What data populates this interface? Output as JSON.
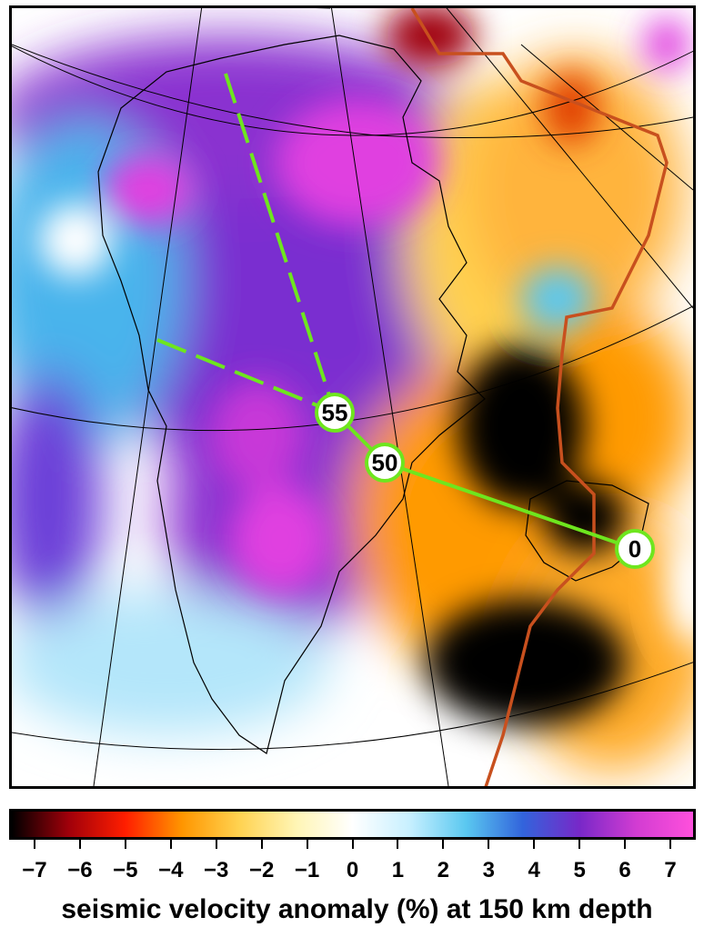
{
  "map": {
    "colors": {
      "profile_line": "#6ee61e",
      "plate_boundary": "#c8501e",
      "coastline": "#000000"
    },
    "markers": [
      {
        "label": "55"
      },
      {
        "label": "50"
      },
      {
        "label": "0"
      }
    ]
  },
  "colorbar": {
    "ticks": [
      "−7",
      "−6",
      "−5",
      "−4",
      "−3",
      "−2",
      "−1",
      "0",
      "1",
      "2",
      "3",
      "4",
      "5",
      "6",
      "7"
    ],
    "range": [
      -7.5,
      7.5
    ],
    "stops": [
      "#000000",
      "#a0000a",
      "#ff1e00",
      "#ff9600",
      "#ffd250",
      "#fff5b4",
      "#ffffff",
      "#c8f0ff",
      "#5ac8f0",
      "#3264dc",
      "#7828c8",
      "#d23cd2",
      "#ff50dc"
    ]
  },
  "caption": "seismic velocity anomaly (%) at 150 km depth"
}
